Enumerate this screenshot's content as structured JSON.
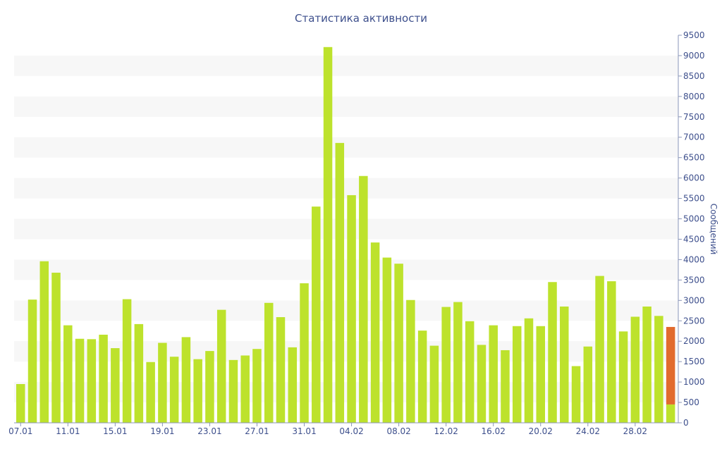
{
  "chart_data": {
    "type": "bar",
    "title": "Статистика активности",
    "xlabel": "",
    "ylabel": "Сообщений",
    "yaxis_side": "right",
    "ylim": [
      0,
      9500
    ],
    "ytick_step": 500,
    "grid": "alternating-bands",
    "x_tick_labels": [
      "07.01",
      "11.01",
      "15.01",
      "19.01",
      "23.01",
      "27.01",
      "31.01",
      "04.02",
      "08.02",
      "12.02",
      "16.02",
      "20.02",
      "24.02",
      "28.02"
    ],
    "x_tick_every": 4,
    "categories": [
      "07.01",
      "08.01",
      "09.01",
      "10.01",
      "11.01",
      "12.01",
      "13.01",
      "14.01",
      "15.01",
      "16.01",
      "17.01",
      "18.01",
      "19.01",
      "20.01",
      "21.01",
      "22.01",
      "23.01",
      "24.01",
      "25.01",
      "26.01",
      "27.01",
      "28.01",
      "29.01",
      "30.01",
      "31.01",
      "01.02",
      "02.02",
      "03.02",
      "04.02",
      "05.02",
      "06.02",
      "07.02",
      "08.02",
      "09.02",
      "10.02",
      "11.02",
      "12.02",
      "13.02",
      "14.02",
      "15.02",
      "16.02",
      "17.02",
      "18.02",
      "19.02",
      "20.02",
      "21.02",
      "22.02",
      "23.02",
      "24.02",
      "25.02",
      "26.02",
      "27.02",
      "28.02",
      "01.03",
      "02.03",
      "03.03"
    ],
    "series": [
      {
        "color": "#bde22c",
        "values": [
          950,
          3020,
          3960,
          3680,
          2390,
          2060,
          2050,
          2160,
          1830,
          3030,
          2420,
          1490,
          1960,
          1620,
          2100,
          1560,
          1760,
          2770,
          1540,
          1650,
          1810,
          2940,
          2590,
          1850,
          3420,
          5300,
          9210,
          6860,
          5580,
          6050,
          4420,
          4050,
          3900,
          3010,
          2260,
          1890,
          2840,
          2960,
          2490,
          1910,
          2390,
          1780,
          2370,
          2560,
          2370,
          3450,
          2850,
          1390,
          1870,
          3600,
          3470,
          2240,
          2600,
          2850,
          2620,
          450
        ]
      },
      {
        "color": "#e26b2e",
        "segment_range": [
          450,
          2350
        ],
        "index": 55
      }
    ]
  }
}
